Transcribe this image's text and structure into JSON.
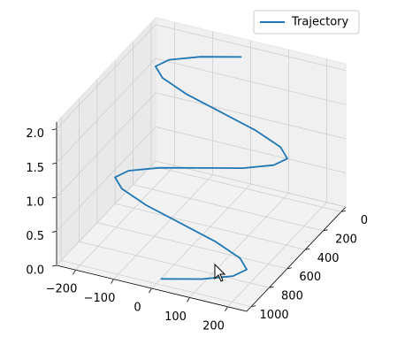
{
  "chart_data": {
    "type": "line3d",
    "series": [
      {
        "name": "Trajectory",
        "color": "#1f77b4",
        "x": [
          0,
          100,
          173,
          200,
          173,
          100,
          0,
          -100,
          -173,
          -200,
          -173,
          -100,
          0,
          100,
          173,
          200,
          173,
          100,
          0,
          -100,
          -173,
          -200,
          -173,
          -100,
          0
        ],
        "y": [
          950,
          912.5,
          875,
          837.5,
          800,
          762.5,
          725,
          687.5,
          650,
          612.5,
          575,
          537.5,
          500,
          462.5,
          425,
          387.5,
          350,
          312.5,
          275,
          237.5,
          200,
          162.5,
          125,
          87.5,
          50
        ],
        "z": [
          0,
          0.08,
          0.17,
          0.25,
          0.33,
          0.42,
          0.5,
          0.58,
          0.67,
          0.75,
          0.83,
          0.92,
          1.0,
          1.08,
          1.17,
          1.25,
          1.33,
          1.42,
          1.5,
          1.58,
          1.67,
          1.75,
          1.83,
          1.92,
          2.0
        ]
      }
    ],
    "xlim": [
      -250,
      250
    ],
    "ylim": [
      -50,
      1050
    ],
    "zlim": [
      0,
      2.1
    ],
    "xticks": [
      {
        "value": -200,
        "label": "−200"
      },
      {
        "value": -100,
        "label": "−100"
      },
      0,
      100,
      200
    ],
    "yticks": [
      0,
      200,
      400,
      600,
      800,
      1000
    ],
    "zticks": [
      {
        "value": 0,
        "label": "0.0"
      },
      {
        "value": 0.5,
        "label": "0.5"
      },
      {
        "value": 1,
        "label": "1.0"
      },
      {
        "value": 1.5,
        "label": "1.5"
      },
      {
        "value": 2,
        "label": "2.0"
      }
    ],
    "grid": true,
    "legend": "upper right"
  }
}
